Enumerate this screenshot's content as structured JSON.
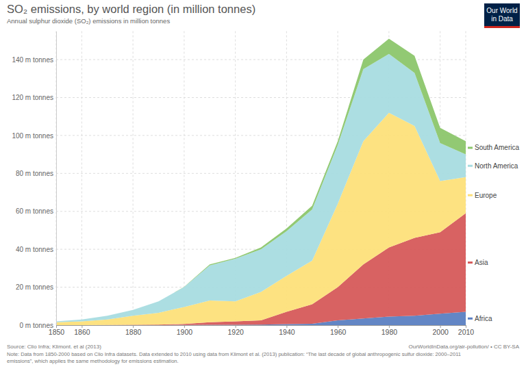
{
  "chart_data": {
    "type": "area",
    "title": "SO₂ emissions, by world region (in million tonnes)",
    "subtitle": "Annual sulphur dioxide (SO₂) emissions in million tonnes",
    "x": [
      1850,
      1860,
      1870,
      1880,
      1890,
      1900,
      1910,
      1920,
      1930,
      1940,
      1950,
      1960,
      1970,
      1980,
      1990,
      2000,
      2010
    ],
    "series": [
      {
        "name": "Africa",
        "color": "#5b7fc2",
        "values": [
          0,
          0,
          0,
          0,
          0,
          0.1,
          0.2,
          0.2,
          0.3,
          0.5,
          0.7,
          2.5,
          3.5,
          4.5,
          5,
          6,
          7
        ]
      },
      {
        "name": "Asia",
        "color": "#d65a5a",
        "values": [
          0,
          0,
          0.1,
          0.2,
          0.3,
          0.5,
          1.3,
          1.8,
          2.2,
          6.5,
          10.3,
          17.5,
          28.5,
          36.5,
          41,
          43,
          52
        ]
      },
      {
        "name": "Europe",
        "color": "#fde07a",
        "values": [
          1.5,
          2,
          2.9,
          4.8,
          6.2,
          9,
          11.5,
          10.5,
          15,
          19,
          23,
          44,
          65,
          71,
          59,
          27,
          19
        ]
      },
      {
        "name": "North America",
        "color": "#a8dce0",
        "values": [
          0.5,
          1,
          2,
          3,
          6,
          10.5,
          18.5,
          22.5,
          22.5,
          23.5,
          27,
          31,
          38,
          31,
          28,
          20,
          12
        ]
      },
      {
        "name": "South America",
        "color": "#8cc66b",
        "values": [
          0,
          0,
          0,
          0,
          0,
          0.1,
          0.5,
          0.5,
          1,
          1.5,
          2,
          2,
          5,
          8,
          9,
          8,
          7
        ]
      }
    ],
    "xlim": [
      1850,
      2010
    ],
    "xticks": [
      1850,
      1860,
      1880,
      1900,
      1920,
      1940,
      1960,
      1980,
      2000,
      2010
    ],
    "ylim": [
      0,
      155
    ],
    "yticks": [
      {
        "value": 0,
        "label": "0 m tonnes"
      },
      {
        "value": 20,
        "label": "20 m tonnes"
      },
      {
        "value": 40,
        "label": "40 m tonnes"
      },
      {
        "value": 60,
        "label": "60 m tonnes"
      },
      {
        "value": 80,
        "label": "80 m tonnes"
      },
      {
        "value": 100,
        "label": "100 m tonnes"
      },
      {
        "value": 120,
        "label": "120 m tonnes"
      },
      {
        "value": 140,
        "label": "140 m tonnes"
      }
    ],
    "grid": true,
    "stacked": true,
    "legend": "right",
    "source": "Source: Clio Infra; Klimont. et al (2013)",
    "source_url": "OurWorldInData.org/air-pollution/ • CC BY-SA",
    "note": [
      "Note: Data from 1850-2000 based on Clio Infra datasets. Data extended to 2010 using data from Klimont et al. (2013) publication: “The last decade of global anthropogenic sulfur dioxide: 2000–2011",
      "emissions”, which applies the same methodology for emissions estimation."
    ],
    "logo": [
      "Our World",
      "in Data"
    ]
  }
}
